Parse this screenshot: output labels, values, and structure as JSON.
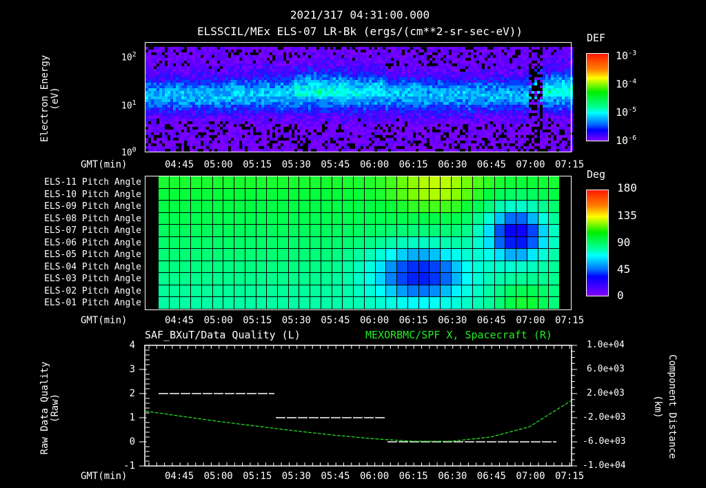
{
  "header": {
    "datetime": "2021/317 04:31:00.000",
    "subtitle": "ELSSCIL/MEx ELS-07 LR-Bk  (ergs/(cm**2-sr-sec-eV))"
  },
  "x_axis": {
    "label": "GMT(min)",
    "ticks": [
      "04:45",
      "05:00",
      "05:15",
      "05:30",
      "05:45",
      "06:00",
      "06:15",
      "06:30",
      "06:45",
      "07:00",
      "07:15"
    ]
  },
  "panel1": {
    "ylabel": "Electron Energy",
    "yunit": "(eV)",
    "yticks": [
      {
        "base": "10",
        "exp": "2"
      },
      {
        "base": "10",
        "exp": "1"
      },
      {
        "base": "10",
        "exp": "0"
      }
    ],
    "colorbar": {
      "title": "DEF",
      "ticks": [
        {
          "base": "10",
          "exp": "-3"
        },
        {
          "base": "10",
          "exp": "-4"
        },
        {
          "base": "10",
          "exp": "-5"
        },
        {
          "base": "10",
          "exp": "-6"
        }
      ]
    }
  },
  "panel2": {
    "rows": [
      "ELS-11 Pitch Angle",
      "ELS-10 Pitch Angle",
      "ELS-09 Pitch Angle",
      "ELS-08 Pitch Angle",
      "ELS-07 Pitch Angle",
      "ELS-06 Pitch Angle",
      "ELS-05 Pitch Angle",
      "ELS-04 Pitch Angle",
      "ELS-03 Pitch Angle",
      "ELS-02 Pitch Angle",
      "ELS-01 Pitch Angle"
    ],
    "colorbar": {
      "title": "Deg",
      "ticks": [
        "180",
        "135",
        "90",
        "45",
        "0"
      ]
    }
  },
  "panel3": {
    "title_left": "SAF_BXuT/Data Quality (L)",
    "title_right": "MEXORBMC/SPF X, Spacecraft (R)",
    "ylabel_left": "Raw Data Quality",
    "yunit_left": "(Raw)",
    "yticks_left": [
      "4",
      "3",
      "2",
      "1",
      "0",
      "-1"
    ],
    "ylabel_right": "Component Distance",
    "yunit_right": "(km)",
    "yticks_right": [
      "1.0e+04",
      "6.0e+03",
      "2.0e+03",
      "-2.0e+03",
      "-6.0e+03",
      "-1.0e+04"
    ],
    "colors": {
      "quality": "#ffffff",
      "distance": "#22dd22"
    }
  },
  "chart_data": [
    {
      "type": "heatmap",
      "title": "ELSSCIL/MEx ELS-07 LR-Bk (ergs/(cm**2-sr-sec-eV))",
      "xlabel": "GMT(min)",
      "ylabel": "Electron Energy (eV)",
      "yscale": "log",
      "ylim": [
        1,
        150
      ],
      "x_ticks": [
        "04:45",
        "05:00",
        "05:15",
        "05:30",
        "05:45",
        "06:00",
        "06:15",
        "06:30",
        "06:45",
        "07:00",
        "07:15"
      ],
      "colorbar": {
        "label": "DEF",
        "scale": "log",
        "range": [
          1e-06,
          0.001
        ]
      },
      "description": "Differential energy flux spectrogram; enhanced band ~5-20 eV throughout, strongest (green, ~1e-4) between 05:45 and 06:25 and after 07:05; data gap near 07:00."
    },
    {
      "type": "heatmap",
      "title": "Pitch Angle",
      "xlabel": "GMT(min)",
      "rows": [
        "ELS-11",
        "ELS-10",
        "ELS-09",
        "ELS-08",
        "ELS-07",
        "ELS-06",
        "ELS-05",
        "ELS-04",
        "ELS-03",
        "ELS-02",
        "ELS-01"
      ],
      "colorbar": {
        "label": "Deg",
        "range": [
          0,
          180
        ],
        "ticks": [
          0,
          45,
          90,
          135,
          180
        ]
      },
      "description": "Pitch angles ~95-110 deg (green) before 06:10; ELS-01..05 drop to ~40-50 deg 06:10-06:40; ELS-06..09 drop to ~25-35 deg 06:40-07:05; ELS-01/02 rise to ~110 deg after 06:45."
    },
    {
      "type": "line",
      "title": "SAF_BXuT/Data Quality (L) / MEXORBMC/SPF X, Spacecraft (R)",
      "xlabel": "GMT(min)",
      "x_ticks": [
        "04:45",
        "05:00",
        "05:15",
        "05:30",
        "05:45",
        "06:00",
        "06:15",
        "06:30",
        "06:45",
        "07:00",
        "07:15"
      ],
      "ylim_left": [
        -1,
        4
      ],
      "ylim_right": [
        -10000,
        10000
      ],
      "series": [
        {
          "name": "Raw Data Quality (L)",
          "axis": "left",
          "x": [
            "04:40",
            "05:22",
            "05:23",
            "06:04",
            "06:05",
            "07:10"
          ],
          "values": [
            2,
            2,
            1,
            1,
            0,
            0
          ]
        },
        {
          "name": "SPF X Spacecraft (R, km)",
          "axis": "right",
          "x": [
            "04:31",
            "04:45",
            "05:00",
            "05:15",
            "05:30",
            "05:45",
            "06:00",
            "06:15",
            "06:30",
            "06:45",
            "07:00",
            "07:15"
          ],
          "values": [
            -900,
            -1700,
            -2600,
            -3400,
            -4200,
            -4900,
            -5500,
            -5900,
            -5900,
            -5200,
            -3500,
            800
          ]
        }
      ]
    }
  ]
}
